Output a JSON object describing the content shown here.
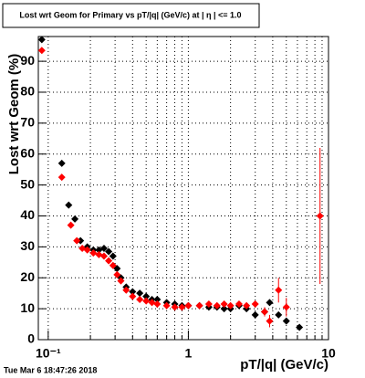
{
  "chart_data": {
    "type": "scatter",
    "title": "Lost wrt Geom for Primary vs pT/|q| (GeV/c) at | η | <= 1.0",
    "x_label": "pT/|q| (GeV/c)",
    "y_label": "Lost wrt Geom (%)",
    "timestamp": "Tue Mar  6 18:47:26 2018",
    "xlog": true,
    "grid": true,
    "xlim": [
      0.085,
      10
    ],
    "ylim": [
      0,
      98
    ],
    "xticks": [
      {
        "value": 0.1,
        "label": "10⁻¹"
      },
      1,
      10
    ],
    "xminorticks": [
      0.2,
      0.3,
      0.4,
      0.5,
      0.6,
      0.7,
      0.8,
      0.9,
      2,
      3,
      4,
      5,
      6,
      7,
      8,
      9
    ],
    "yticks": [
      0,
      10,
      20,
      30,
      40,
      50,
      60,
      70,
      80,
      90
    ],
    "series": [
      {
        "color": "#000000",
        "x": [
          0.09,
          0.125,
          0.14,
          0.155,
          0.17,
          0.19,
          0.21,
          0.23,
          0.25,
          0.27,
          0.29,
          0.31,
          0.33,
          0.36,
          0.4,
          0.45,
          0.5,
          0.55,
          0.6,
          0.7,
          0.8,
          0.9,
          1.0,
          1.2,
          1.4,
          1.6,
          1.8,
          2.0,
          2.3,
          2.6,
          3.0,
          3.5,
          3.8,
          4.4,
          5.0,
          6.2
        ],
        "values": [
          97,
          57,
          43.5,
          39,
          32,
          30,
          29,
          29,
          29.5,
          28.5,
          27,
          23,
          20,
          17,
          15.5,
          15,
          14,
          13,
          13,
          12,
          11.5,
          11,
          11,
          11,
          10.5,
          10.5,
          10,
          10,
          11,
          10,
          8,
          9,
          12,
          8,
          6,
          4
        ]
      },
      {
        "color": "#ff0000",
        "x": [
          0.09,
          0.125,
          0.145,
          0.16,
          0.175,
          0.19,
          0.21,
          0.23,
          0.25,
          0.27,
          0.29,
          0.31,
          0.33,
          0.36,
          0.4,
          0.45,
          0.5,
          0.55,
          0.6,
          0.7,
          0.8,
          0.9,
          1.0,
          1.2,
          1.4,
          1.6,
          1.8,
          2.0,
          2.3,
          2.6,
          3.0,
          3.5,
          3.8,
          4.4,
          5.0,
          8.7
        ],
        "values": [
          93.5,
          52.5,
          37,
          32,
          29.5,
          29,
          28,
          27.5,
          27,
          25.5,
          24,
          21,
          19,
          16,
          14,
          13,
          12.5,
          12,
          11.5,
          11,
          10.5,
          10.5,
          11,
          11,
          11.5,
          11,
          11.5,
          11,
          11.5,
          11,
          11.5,
          9,
          6,
          16,
          10.5,
          40
        ],
        "errors": [
          0.5,
          0.5,
          0.5,
          0.5,
          0.5,
          0.5,
          0.5,
          0.5,
          0.5,
          0.5,
          0.5,
          0.5,
          0.5,
          0.5,
          0.5,
          0.5,
          0.5,
          0.5,
          0.5,
          0.5,
          0.5,
          0.5,
          0.5,
          0.5,
          0.5,
          0.5,
          0.5,
          0.5,
          0.5,
          0.5,
          1,
          1.5,
          2,
          4,
          3,
          22
        ]
      }
    ]
  }
}
